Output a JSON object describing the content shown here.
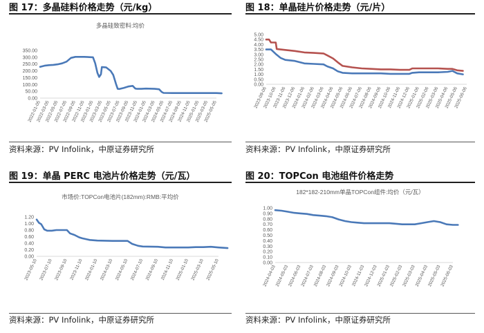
{
  "panels": [
    {
      "title": "图 17：多晶硅料价格走势（元/kg）",
      "source": "资料来源：PV Infolink，中原证券研究所"
    },
    {
      "title": "图 18：单晶硅片价格走势（元/片）",
      "source": "资料来源：PV Infolink，中原证券研究所"
    },
    {
      "title": "图 19：单晶 PERC 电池片价格走势（元/瓦）",
      "source": "资料来源：PV Infolink，中原证券研究所"
    },
    {
      "title": "图 20：TOPCon 电池组件价格走势",
      "source": "资料来源：PV Infolink，中原证券研究所"
    }
  ],
  "colors": {
    "blue": "#4a79b8",
    "red": "#b5524f",
    "axis": "#d9d9d9",
    "text": "#595959"
  },
  "chart_data": [
    {
      "type": "line",
      "title": "多晶硅致密料:均价",
      "categories": [
        "2022-01-05",
        "2022-03-05",
        "2022-05-05",
        "2022-07-05",
        "2022-09-05",
        "2022-11-05",
        "2023-01-05",
        "2023-03-05",
        "2023-05-05",
        "2023-07-05",
        "2023-09-05",
        "2023-11-05",
        "2024-01-05",
        "2024-03-05",
        "2024-05-05",
        "2024-07-05",
        "2024-09-05",
        "2024-11-05",
        "2025-01-05",
        "2025-03-05",
        "2025-05-05"
      ],
      "ylim": [
        0,
        350
      ],
      "yticks": [
        "0.00",
        "50.00",
        "100.00",
        "150.00",
        "200.00",
        "250.00",
        "300.00",
        "350.00"
      ],
      "series": [
        {
          "color": "blue",
          "points": [
            [
              0,
              230
            ],
            [
              0.5,
              238
            ],
            [
              1,
              242
            ],
            [
              1.5,
              244
            ],
            [
              2,
              248
            ],
            [
              2.5,
              255
            ],
            [
              3,
              268
            ],
            [
              3.5,
              295
            ],
            [
              4,
              303
            ],
            [
              5,
              303
            ],
            [
              6,
              300
            ],
            [
              6.25,
              255
            ],
            [
              6.5,
              185
            ],
            [
              6.7,
              155
            ],
            [
              6.9,
              175
            ],
            [
              7,
              228
            ],
            [
              7.5,
              225
            ],
            [
              8,
              200
            ],
            [
              8.3,
              170
            ],
            [
              8.6,
              105
            ],
            [
              8.8,
              68
            ],
            [
              9,
              67
            ],
            [
              9.5,
              75
            ],
            [
              10,
              85
            ],
            [
              10.5,
              90
            ],
            [
              10.8,
              70
            ],
            [
              11,
              68
            ],
            [
              11.5,
              68
            ],
            [
              12,
              70
            ],
            [
              13,
              68
            ],
            [
              13.5,
              65
            ],
            [
              13.8,
              45
            ],
            [
              14,
              38
            ],
            [
              15,
              37
            ],
            [
              16,
              37
            ],
            [
              17,
              37
            ],
            [
              18,
              37
            ],
            [
              19,
              37
            ],
            [
              20,
              37
            ],
            [
              20.6,
              35
            ]
          ]
        }
      ]
    },
    {
      "type": "line",
      "title": "",
      "categories": [
        "2023-09-06",
        "2023-10-06",
        "2023-11-06",
        "2023-12-06",
        "2024-01-06",
        "2024-02-06",
        "2024-03-06",
        "2024-04-06",
        "2024-05-06",
        "2024-06-06",
        "2024-07-06",
        "2024-08-06",
        "2024-09-06",
        "2024-10-06",
        "2024-11-06",
        "2024-12-06",
        "2025-01-06",
        "2025-02-06",
        "2025-03-06",
        "2025-04-06",
        "2025-05-06",
        "2025-06-06"
      ],
      "ylim": [
        0,
        5
      ],
      "yticks": [
        "0.00",
        "0.50",
        "1.00",
        "1.50",
        "2.00",
        "2.50",
        "3.00",
        "3.50",
        "4.00",
        "4.50",
        "5.00"
      ],
      "series": [
        {
          "color": "red",
          "points": [
            [
              0,
              4.5
            ],
            [
              0.3,
              4.5
            ],
            [
              0.5,
              4.2
            ],
            [
              1,
              4.2
            ],
            [
              1.1,
              3.55
            ],
            [
              2,
              3.45
            ],
            [
              3,
              3.35
            ],
            [
              4,
              3.2
            ],
            [
              5,
              3.15
            ],
            [
              6,
              3.1
            ],
            [
              6.4,
              2.9
            ],
            [
              7,
              2.6
            ],
            [
              7.5,
              2.2
            ],
            [
              8,
              1.85
            ],
            [
              9,
              1.7
            ],
            [
              10,
              1.6
            ],
            [
              11,
              1.55
            ],
            [
              12,
              1.5
            ],
            [
              13,
              1.5
            ],
            [
              14,
              1.45
            ],
            [
              15,
              1.45
            ],
            [
              15.3,
              1.6
            ],
            [
              16,
              1.6
            ],
            [
              17,
              1.6
            ],
            [
              18,
              1.6
            ],
            [
              19,
              1.55
            ],
            [
              19.5,
              1.55
            ],
            [
              20,
              1.4
            ],
            [
              20.6,
              1.35
            ]
          ]
        },
        {
          "color": "blue",
          "points": [
            [
              0,
              3.5
            ],
            [
              0.5,
              3.5
            ],
            [
              1,
              3.05
            ],
            [
              1.5,
              2.65
            ],
            [
              2,
              2.45
            ],
            [
              3,
              2.35
            ],
            [
              4,
              2.1
            ],
            [
              5,
              2.05
            ],
            [
              6,
              2.0
            ],
            [
              6.4,
              1.8
            ],
            [
              7,
              1.6
            ],
            [
              7.5,
              1.3
            ],
            [
              8,
              1.15
            ],
            [
              9,
              1.1
            ],
            [
              10,
              1.1
            ],
            [
              11,
              1.1
            ],
            [
              12,
              1.1
            ],
            [
              13,
              1.05
            ],
            [
              14,
              1.05
            ],
            [
              15,
              1.05
            ],
            [
              15.3,
              1.15
            ],
            [
              16,
              1.2
            ],
            [
              17,
              1.2
            ],
            [
              18,
              1.2
            ],
            [
              19,
              1.25
            ],
            [
              19.5,
              1.35
            ],
            [
              20,
              1.1
            ],
            [
              20.6,
              1.0
            ]
          ]
        }
      ]
    },
    {
      "type": "line",
      "title": "市场价:TOPCon电池片(182mm):RMB:平均价",
      "categories": [
        "2023-05-10",
        "2023-07-10",
        "2023-09-10",
        "2023-11-10",
        "2024-01-10",
        "2024-03-10",
        "2024-05-10",
        "2024-07-10",
        "2024-09-10",
        "2024-11-10",
        "2025-01-10",
        "2025-03-10",
        "2025-05-10"
      ],
      "ylim": [
        0,
        1.2
      ],
      "yticks": [
        "0.00",
        "0.20",
        "0.40",
        "0.60",
        "0.80",
        "1.00",
        "1.20"
      ],
      "series": [
        {
          "color": "blue",
          "points": [
            [
              0,
              1.12
            ],
            [
              0.15,
              1.02
            ],
            [
              0.3,
              0.98
            ],
            [
              0.5,
              0.82
            ],
            [
              0.7,
              0.78
            ],
            [
              1,
              0.78
            ],
            [
              1.3,
              0.8
            ],
            [
              2,
              0.8
            ],
            [
              2.2,
              0.7
            ],
            [
              2.5,
              0.65
            ],
            [
              2.8,
              0.58
            ],
            [
              3,
              0.55
            ],
            [
              3.5,
              0.5
            ],
            [
              4,
              0.48
            ],
            [
              5,
              0.47
            ],
            [
              6,
              0.47
            ],
            [
              6.3,
              0.38
            ],
            [
              6.7,
              0.32
            ],
            [
              7,
              0.3
            ],
            [
              8,
              0.29
            ],
            [
              8.5,
              0.27
            ],
            [
              9,
              0.27
            ],
            [
              10,
              0.27
            ],
            [
              10.5,
              0.28
            ],
            [
              11,
              0.28
            ],
            [
              11.5,
              0.29
            ],
            [
              12,
              0.27
            ],
            [
              12.6,
              0.25
            ]
          ]
        }
      ]
    },
    {
      "type": "line",
      "title": "182*182-210mm单晶TOPCon组件:均价（元/瓦）",
      "categories": [
        "2024-04-03",
        "2024-05-03",
        "2024-06-03",
        "2024-07-03",
        "2024-08-03",
        "2024-09-03",
        "2024-10-03",
        "2024-11-03",
        "2024-12-03",
        "2025-01-03",
        "2025-02-03",
        "2025-03-03",
        "2025-04-03",
        "2025-05-03",
        "2025-06-03"
      ],
      "ylim": [
        0,
        1
      ],
      "yticks": [
        "0.00",
        "0.10",
        "0.20",
        "0.30",
        "0.40",
        "0.50",
        "0.60",
        "0.70",
        "0.80",
        "0.90",
        "1.00"
      ],
      "series": [
        {
          "color": "blue",
          "points": [
            [
              0,
              0.96
            ],
            [
              0.5,
              0.95
            ],
            [
              1,
              0.93
            ],
            [
              1.5,
              0.91
            ],
            [
              2,
              0.9
            ],
            [
              2.5,
              0.89
            ],
            [
              3,
              0.87
            ],
            [
              3.5,
              0.86
            ],
            [
              4,
              0.85
            ],
            [
              4.5,
              0.83
            ],
            [
              5,
              0.79
            ],
            [
              5.5,
              0.76
            ],
            [
              6,
              0.74
            ],
            [
              6.5,
              0.73
            ],
            [
              7,
              0.72
            ],
            [
              8,
              0.72
            ],
            [
              9,
              0.72
            ],
            [
              10,
              0.7
            ],
            [
              11,
              0.7
            ],
            [
              11.5,
              0.72
            ],
            [
              12,
              0.74
            ],
            [
              12.5,
              0.76
            ],
            [
              13,
              0.74
            ],
            [
              13.5,
              0.7
            ],
            [
              14,
              0.69
            ],
            [
              14.4,
              0.69
            ]
          ]
        }
      ]
    }
  ]
}
